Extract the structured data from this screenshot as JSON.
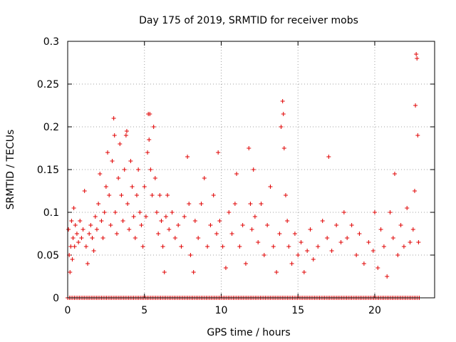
{
  "chart_data": {
    "type": "scatter",
    "title": "Day 175 of 2019, SRMTID for receiver mobs",
    "xlabel": "GPS time / hours",
    "ylabel": "SRMTID / TECUs",
    "xlim": [
      0,
      23.9
    ],
    "ylim": [
      0,
      0.3
    ],
    "xticks": [
      0,
      5,
      10,
      15,
      20
    ],
    "xtick_labels": [
      "0",
      "5",
      "10",
      "15",
      "20"
    ],
    "yticks": [
      0,
      0.05,
      0.1,
      0.15,
      0.2,
      0.25,
      0.3
    ],
    "ytick_labels": [
      "0",
      "0.05",
      "0.1",
      "0.15",
      "0.2",
      "0.25",
      "0.3"
    ],
    "grid": true,
    "legend": "none",
    "marker": "+",
    "color": "#e00000",
    "series": [
      {
        "name": "SRMTID",
        "points": [
          [
            0.05,
            0.08
          ],
          [
            0.1,
            0.05
          ],
          [
            0.15,
            0.03
          ],
          [
            0.2,
            0.06
          ],
          [
            0.25,
            0.09
          ],
          [
            0.3,
            0.045
          ],
          [
            0.35,
            0.07
          ],
          [
            0.4,
            0.105
          ],
          [
            0.45,
            0.06
          ],
          [
            0.5,
            0.085
          ],
          [
            0.6,
            0.075
          ],
          [
            0.7,
            0.065
          ],
          [
            0.8,
            0.09
          ],
          [
            0.9,
            0.07
          ],
          [
            1.0,
            0.08
          ],
          [
            1.1,
            0.125
          ],
          [
            1.2,
            0.06
          ],
          [
            1.3,
            0.04
          ],
          [
            1.4,
            0.075
          ],
          [
            1.5,
            0.085
          ],
          [
            1.6,
            0.07
          ],
          [
            1.7,
            0.055
          ],
          [
            1.8,
            0.095
          ],
          [
            1.9,
            0.08
          ],
          [
            2.0,
            0.11
          ],
          [
            2.1,
            0.145
          ],
          [
            2.2,
            0.09
          ],
          [
            2.3,
            0.07
          ],
          [
            2.4,
            0.1
          ],
          [
            2.5,
            0.13
          ],
          [
            2.6,
            0.17
          ],
          [
            2.7,
            0.12
          ],
          [
            2.8,
            0.085
          ],
          [
            2.9,
            0.16
          ],
          [
            3.0,
            0.21
          ],
          [
            3.05,
            0.19
          ],
          [
            3.1,
            0.1
          ],
          [
            3.2,
            0.075
          ],
          [
            3.3,
            0.14
          ],
          [
            3.4,
            0.18
          ],
          [
            3.5,
            0.12
          ],
          [
            3.6,
            0.09
          ],
          [
            3.7,
            0.15
          ],
          [
            3.8,
            0.19
          ],
          [
            3.85,
            0.195
          ],
          [
            3.9,
            0.11
          ],
          [
            4.0,
            0.08
          ],
          [
            4.1,
            0.16
          ],
          [
            4.2,
            0.13
          ],
          [
            4.3,
            0.095
          ],
          [
            4.4,
            0.07
          ],
          [
            4.5,
            0.12
          ],
          [
            4.6,
            0.15
          ],
          [
            4.7,
            0.1
          ],
          [
            4.8,
            0.085
          ],
          [
            4.9,
            0.06
          ],
          [
            5.0,
            0.13
          ],
          [
            5.1,
            0.095
          ],
          [
            5.2,
            0.17
          ],
          [
            5.25,
            0.215
          ],
          [
            5.3,
            0.185
          ],
          [
            5.35,
            0.215
          ],
          [
            5.4,
            0.15
          ],
          [
            5.5,
            0.12
          ],
          [
            5.6,
            0.2
          ],
          [
            5.7,
            0.14
          ],
          [
            5.8,
            0.1
          ],
          [
            5.9,
            0.075
          ],
          [
            6.0,
            0.12
          ],
          [
            6.1,
            0.09
          ],
          [
            6.2,
            0.06
          ],
          [
            6.3,
            0.03
          ],
          [
            6.4,
            0.095
          ],
          [
            6.5,
            0.12
          ],
          [
            6.6,
            0.08
          ],
          [
            6.8,
            0.1
          ],
          [
            7.0,
            0.07
          ],
          [
            7.2,
            0.085
          ],
          [
            7.4,
            0.06
          ],
          [
            7.6,
            0.095
          ],
          [
            7.8,
            0.165
          ],
          [
            7.9,
            0.11
          ],
          [
            8.0,
            0.05
          ],
          [
            8.2,
            0.03
          ],
          [
            8.3,
            0.09
          ],
          [
            8.5,
            0.07
          ],
          [
            8.7,
            0.11
          ],
          [
            8.9,
            0.14
          ],
          [
            9.1,
            0.06
          ],
          [
            9.3,
            0.085
          ],
          [
            9.5,
            0.12
          ],
          [
            9.7,
            0.075
          ],
          [
            9.8,
            0.17
          ],
          [
            9.9,
            0.09
          ],
          [
            10.1,
            0.06
          ],
          [
            10.3,
            0.035
          ],
          [
            10.5,
            0.1
          ],
          [
            10.7,
            0.075
          ],
          [
            10.9,
            0.11
          ],
          [
            11.0,
            0.145
          ],
          [
            11.2,
            0.06
          ],
          [
            11.4,
            0.085
          ],
          [
            11.6,
            0.04
          ],
          [
            11.8,
            0.175
          ],
          [
            11.9,
            0.11
          ],
          [
            12.0,
            0.08
          ],
          [
            12.1,
            0.15
          ],
          [
            12.2,
            0.095
          ],
          [
            12.4,
            0.065
          ],
          [
            12.6,
            0.11
          ],
          [
            12.8,
            0.05
          ],
          [
            13.0,
            0.085
          ],
          [
            13.2,
            0.13
          ],
          [
            13.4,
            0.06
          ],
          [
            13.6,
            0.03
          ],
          [
            13.8,
            0.075
          ],
          [
            13.9,
            0.2
          ],
          [
            14.0,
            0.23
          ],
          [
            14.05,
            0.215
          ],
          [
            14.1,
            0.175
          ],
          [
            14.2,
            0.12
          ],
          [
            14.3,
            0.09
          ],
          [
            14.4,
            0.06
          ],
          [
            14.6,
            0.04
          ],
          [
            14.8,
            0.075
          ],
          [
            15.0,
            0.05
          ],
          [
            15.2,
            0.065
          ],
          [
            15.4,
            0.03
          ],
          [
            15.6,
            0.055
          ],
          [
            15.8,
            0.08
          ],
          [
            16.0,
            0.045
          ],
          [
            16.3,
            0.06
          ],
          [
            16.6,
            0.09
          ],
          [
            16.9,
            0.07
          ],
          [
            17.0,
            0.165
          ],
          [
            17.2,
            0.055
          ],
          [
            17.5,
            0.085
          ],
          [
            17.8,
            0.065
          ],
          [
            18.0,
            0.1
          ],
          [
            18.2,
            0.07
          ],
          [
            18.5,
            0.085
          ],
          [
            18.8,
            0.05
          ],
          [
            19.0,
            0.075
          ],
          [
            19.3,
            0.04
          ],
          [
            19.6,
            0.065
          ],
          [
            19.9,
            0.055
          ],
          [
            20.0,
            0.1
          ],
          [
            20.2,
            0.035
          ],
          [
            20.4,
            0.08
          ],
          [
            20.6,
            0.06
          ],
          [
            20.8,
            0.025
          ],
          [
            21.0,
            0.1
          ],
          [
            21.2,
            0.07
          ],
          [
            21.3,
            0.145
          ],
          [
            21.5,
            0.05
          ],
          [
            21.7,
            0.085
          ],
          [
            21.9,
            0.06
          ],
          [
            22.1,
            0.105
          ],
          [
            22.3,
            0.065
          ],
          [
            22.5,
            0.08
          ],
          [
            22.6,
            0.125
          ],
          [
            22.65,
            0.225
          ],
          [
            22.7,
            0.285
          ],
          [
            22.75,
            0.28
          ],
          [
            22.8,
            0.19
          ],
          [
            22.85,
            0.065
          ]
        ],
        "zero_band_range": [
          0,
          22.9
        ]
      }
    ]
  }
}
